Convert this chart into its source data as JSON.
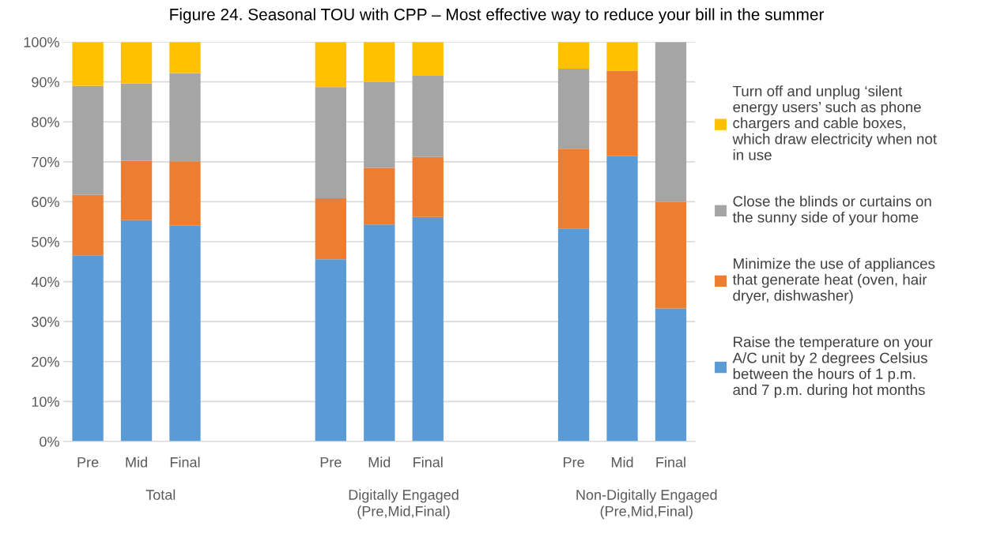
{
  "chart_data": {
    "type": "bar",
    "stacked": true,
    "title": "Figure 24. Seasonal TOU with CPP – Most effective way to reduce your bill in the summer",
    "categories": [
      "Pre",
      "Mid",
      "Final",
      null,
      null,
      "Pre",
      "Mid",
      "Final",
      null,
      null,
      "Pre",
      "Mid",
      "Final"
    ],
    "series": [
      {
        "name": "Raise the temperature on your\nA/C unit by 2 degrees Celsius\nbetween the hours of 1 p.m.\nand 7 p.m. during hot months",
        "color": "#5b9bd5",
        "values": [
          46.6,
          55.4,
          54.0,
          null,
          null,
          45.6,
          54.3,
          56.2,
          null,
          null,
          53.3,
          71.4,
          33.3
        ]
      },
      {
        "name": "Minimize the use of appliances\nthat generate heat (oven, hair\ndryer, dishwasher)",
        "color": "#ed7d31",
        "values": [
          15.1,
          14.8,
          16.1,
          null,
          null,
          15.3,
          14.2,
          15.0,
          null,
          null,
          20.0,
          21.4,
          26.7
        ]
      },
      {
        "name": "Close the blinds or curtains on\nthe sunny side of your home",
        "color": "#a5a5a5",
        "values": [
          27.3,
          19.4,
          22.1,
          null,
          null,
          27.8,
          21.5,
          20.3,
          null,
          null,
          20.0,
          0,
          40.0
        ]
      },
      {
        "name": "Turn off and unplug ‘silent\nenergy users’ such as phone\nchargers and cable boxes,\nwhich draw electricity when not\nin use",
        "color": "#ffc000",
        "values": [
          11.0,
          10.4,
          7.8,
          null,
          null,
          11.3,
          10.0,
          8.5,
          null,
          null,
          6.7,
          7.2,
          0
        ]
      }
    ],
    "annotations": [
      "Total",
      "Digitally Engaged\n(Pre,Mid,Final)",
      "Non-Digitally Engaged\n(Pre,Mid,Final)"
    ],
    "ylim": [
      0,
      100
    ],
    "yticks": [
      {
        "value": 0,
        "label": "0%"
      },
      {
        "value": 10,
        "label": "10%"
      },
      {
        "value": 20,
        "label": "20%"
      },
      {
        "value": 30,
        "label": "30%"
      },
      {
        "value": 40,
        "label": "40%"
      },
      {
        "value": 50,
        "label": "50%"
      },
      {
        "value": 60,
        "label": "60%"
      },
      {
        "value": 70,
        "label": "70%"
      },
      {
        "value": 80,
        "label": "80%"
      },
      {
        "value": 90,
        "label": "90%"
      },
      {
        "value": 100,
        "label": "100%"
      }
    ],
    "grid": "y",
    "legend": "right"
  }
}
